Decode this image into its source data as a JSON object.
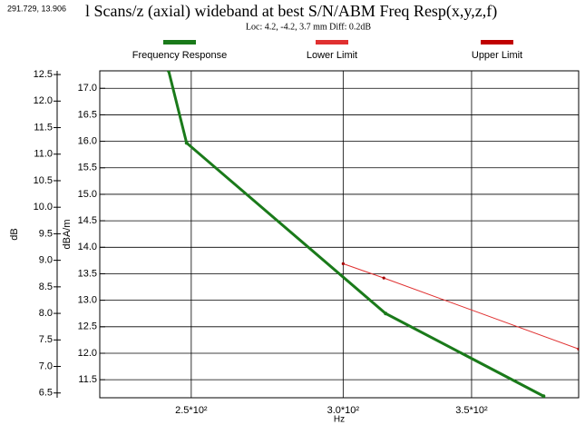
{
  "chart_data": {
    "type": "line",
    "title": "l Scans/z (axial) wideband at best S/N/ABM Freq Resp(x,y,z,f)",
    "cursor_readout": "291.729, 13.906",
    "subtitle": "Loc: 4.2, -4.2, 3.7 mm Diff: 0.2dB",
    "x_label": "Hz",
    "y_label": "dB",
    "y2_label": "dBA/m",
    "xscale": "log",
    "grid": true,
    "legend": "top",
    "xlim": [
      224,
      398
    ],
    "xticks": [
      {
        "value": 250,
        "label": "2.5*10²"
      },
      {
        "value": 300,
        "label": "3.0*10²"
      },
      {
        "value": 350,
        "label": "3.5*10²"
      }
    ],
    "ylim": [
      6.41,
      12.57
    ],
    "yticks": [
      {
        "value": 6.5,
        "label": "6.5"
      },
      {
        "value": 7,
        "label": "7.0"
      },
      {
        "value": 7.5,
        "label": "7.5"
      },
      {
        "value": 8,
        "label": "8.0"
      },
      {
        "value": 8.5,
        "label": "8.5"
      },
      {
        "value": 9,
        "label": "9.0"
      },
      {
        "value": 9.5,
        "label": "9.5"
      },
      {
        "value": 10,
        "label": "10.0"
      },
      {
        "value": 10.5,
        "label": "10.5"
      },
      {
        "value": 11,
        "label": "11.0"
      },
      {
        "value": 11.5,
        "label": "11.5"
      },
      {
        "value": 12,
        "label": "12.0"
      },
      {
        "value": 12.5,
        "label": "12.5"
      }
    ],
    "y2lim": [
      11.16,
      17.33
    ],
    "y2ticks": [
      11.5,
      {
        "value": 12,
        "label": "12.0"
      },
      12.5,
      {
        "value": 13,
        "label": "13.0"
      },
      13.5,
      {
        "value": 14,
        "label": "14.0"
      },
      14.5,
      {
        "value": 15,
        "label": "15.0"
      },
      15.5,
      {
        "value": 16,
        "label": "16.0"
      },
      16.5,
      {
        "value": 17,
        "label": "17.0"
      }
    ],
    "series": [
      {
        "name": "Frequency Response",
        "color": "#1a7a1a",
        "axis": "y2",
        "x": [
          243.3,
          248.6,
          315.7,
          381.6
        ],
        "values": [
          17.33,
          15.97,
          12.75,
          11.19
        ]
      },
      {
        "name": "Lower Limit",
        "color": "#e03030",
        "axis": "y2",
        "x": [
          300,
          315,
          398
        ],
        "values": [
          13.69,
          13.42,
          12.08
        ]
      },
      {
        "name": "Upper Limit",
        "color": "#c00000",
        "axis": "y2",
        "x": [
          300,
          398
        ],
        "values": [
          null,
          null
        ]
      }
    ]
  }
}
